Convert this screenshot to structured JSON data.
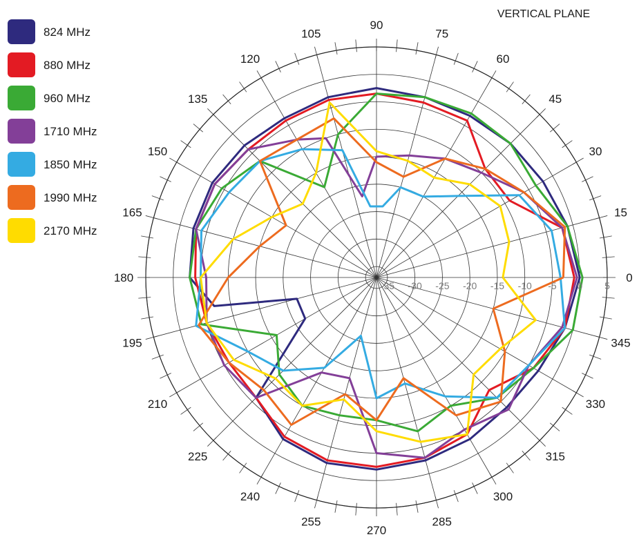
{
  "chart_data": {
    "type": "polar-line",
    "title": "VERTICAL PLANE",
    "angle_ticks": [
      "0",
      "15",
      "30",
      "45",
      "60",
      "75",
      "90",
      "105",
      "120",
      "135",
      "150",
      "165",
      "180",
      "195",
      "210",
      "225",
      "240",
      "255",
      "270",
      "285",
      "300",
      "315",
      "330",
      "345"
    ],
    "angle_tick_values": [
      0,
      15,
      30,
      45,
      60,
      75,
      90,
      105,
      120,
      135,
      150,
      165,
      180,
      195,
      210,
      225,
      240,
      255,
      270,
      285,
      300,
      315,
      330,
      345
    ],
    "radial_ticks": [
      "-35",
      "-30",
      "-25",
      "-20",
      "-15",
      "-10",
      "-5",
      "0",
      "5"
    ],
    "radial_tick_values": [
      -35,
      -30,
      -25,
      -20,
      -15,
      -10,
      -5,
      0,
      5
    ],
    "rlim": [
      -37,
      5
    ],
    "grid": true,
    "legend_position": "top-left",
    "series": [
      {
        "name": "824 MHz",
        "color": "#2e2a7e",
        "points": [
          [
            0,
            0
          ],
          [
            15,
            -1
          ],
          [
            30,
            -2
          ],
          [
            45,
            -2.5
          ],
          [
            60,
            -3
          ],
          [
            75,
            -3
          ],
          [
            90,
            -2.5
          ],
          [
            105,
            -3
          ],
          [
            120,
            -3.5
          ],
          [
            135,
            -3
          ],
          [
            150,
            -2.5
          ],
          [
            165,
            -2.5
          ],
          [
            180,
            -3
          ],
          [
            190,
            -7
          ],
          [
            195,
            -22
          ],
          [
            210,
            -22
          ],
          [
            225,
            -6
          ],
          [
            240,
            -3
          ],
          [
            255,
            -2
          ],
          [
            270,
            -2
          ],
          [
            285,
            -2.5
          ],
          [
            300,
            -3
          ],
          [
            315,
            -3.5
          ],
          [
            330,
            -3
          ],
          [
            345,
            -1.5
          ]
        ]
      },
      {
        "name": "880 MHz",
        "color": "#e31b23",
        "points": [
          [
            0,
            -1
          ],
          [
            15,
            -2
          ],
          [
            30,
            -9
          ],
          [
            45,
            -9
          ],
          [
            60,
            -4
          ],
          [
            75,
            -4
          ],
          [
            90,
            -3.5
          ],
          [
            105,
            -3.5
          ],
          [
            120,
            -4
          ],
          [
            135,
            -4
          ],
          [
            150,
            -3
          ],
          [
            165,
            -3
          ],
          [
            180,
            -4
          ],
          [
            195,
            -5
          ],
          [
            210,
            -6
          ],
          [
            225,
            -6
          ],
          [
            240,
            -3.5
          ],
          [
            255,
            -2.5
          ],
          [
            270,
            -2.5
          ],
          [
            285,
            -3
          ],
          [
            300,
            -4
          ],
          [
            315,
            -8
          ],
          [
            330,
            -4
          ],
          [
            345,
            -1.5
          ]
        ]
      },
      {
        "name": "960 MHz",
        "color": "#3aaa35",
        "points": [
          [
            0,
            0.5
          ],
          [
            15,
            -1
          ],
          [
            30,
            -3.5
          ],
          [
            45,
            -2.5
          ],
          [
            60,
            -2.5
          ],
          [
            75,
            -3
          ],
          [
            90,
            -3.5
          ],
          [
            105,
            -10
          ],
          [
            120,
            -18
          ],
          [
            135,
            -7
          ],
          [
            150,
            -4.5
          ],
          [
            165,
            -3
          ],
          [
            180,
            -3
          ],
          [
            195,
            -4
          ],
          [
            210,
            -16
          ],
          [
            225,
            -12
          ],
          [
            240,
            -10
          ],
          [
            255,
            -11
          ],
          [
            270,
            -11
          ],
          [
            285,
            -8
          ],
          [
            300,
            -10
          ],
          [
            315,
            -6
          ],
          [
            330,
            -4
          ],
          [
            345,
            0
          ]
        ]
      },
      {
        "name": "1710 MHz",
        "color": "#833f98",
        "points": [
          [
            0,
            -0.5
          ],
          [
            15,
            -2
          ],
          [
            30,
            -6
          ],
          [
            45,
            -10
          ],
          [
            60,
            -12
          ],
          [
            75,
            -14
          ],
          [
            90,
            -15
          ],
          [
            100,
            -22
          ],
          [
            110,
            -10
          ],
          [
            120,
            -8
          ],
          [
            135,
            -4
          ],
          [
            150,
            -3
          ],
          [
            165,
            -3
          ],
          [
            180,
            -6
          ],
          [
            195,
            -5
          ],
          [
            210,
            -5
          ],
          [
            225,
            -6
          ],
          [
            240,
            -17
          ],
          [
            255,
            -18
          ],
          [
            270,
            -5
          ],
          [
            285,
            -3
          ],
          [
            300,
            -5
          ],
          [
            315,
            -3
          ],
          [
            330,
            -5
          ],
          [
            345,
            -2
          ]
        ]
      },
      {
        "name": "1850 MHz",
        "color": "#34abe2",
        "points": [
          [
            0,
            -3.5
          ],
          [
            15,
            -4
          ],
          [
            30,
            -7
          ],
          [
            45,
            -16
          ],
          [
            60,
            -20
          ],
          [
            75,
            -20
          ],
          [
            85,
            -24
          ],
          [
            95,
            -24
          ],
          [
            105,
            -13
          ],
          [
            120,
            -10
          ],
          [
            135,
            -7
          ],
          [
            150,
            -6
          ],
          [
            165,
            -4
          ],
          [
            180,
            -5
          ],
          [
            195,
            -3
          ],
          [
            210,
            -10
          ],
          [
            225,
            -13
          ],
          [
            240,
            -18
          ],
          [
            255,
            -26
          ],
          [
            270,
            -15
          ],
          [
            285,
            -17
          ],
          [
            300,
            -12
          ],
          [
            315,
            -6
          ],
          [
            330,
            -5
          ],
          [
            345,
            -1.5
          ]
        ]
      },
      {
        "name": "1990 MHz",
        "color": "#ed6b1f",
        "points": [
          [
            0,
            -3
          ],
          [
            15,
            -1.5
          ],
          [
            30,
            -6
          ],
          [
            45,
            -9
          ],
          [
            60,
            -12
          ],
          [
            75,
            -18
          ],
          [
            90,
            -16
          ],
          [
            105,
            -7
          ],
          [
            120,
            -8
          ],
          [
            135,
            -7
          ],
          [
            150,
            -18
          ],
          [
            165,
            -15
          ],
          [
            180,
            -10
          ],
          [
            195,
            -3.5
          ],
          [
            210,
            -6
          ],
          [
            225,
            -8
          ],
          [
            240,
            -6
          ],
          [
            255,
            -15
          ],
          [
            270,
            -11
          ],
          [
            285,
            -18
          ],
          [
            300,
            -8
          ],
          [
            315,
            -5
          ],
          [
            330,
            -10
          ],
          [
            345,
            -15
          ]
        ]
      },
      {
        "name": "2170 MHz",
        "color": "#ffdc00",
        "points": [
          [
            0,
            -14
          ],
          [
            15,
            -12
          ],
          [
            30,
            -11
          ],
          [
            45,
            -13
          ],
          [
            60,
            -16
          ],
          [
            75,
            -15
          ],
          [
            90,
            -14
          ],
          [
            105,
            -4
          ],
          [
            120,
            -15
          ],
          [
            135,
            -18
          ],
          [
            150,
            -15
          ],
          [
            165,
            -10
          ],
          [
            180,
            -5
          ],
          [
            195,
            -5
          ],
          [
            210,
            -7
          ],
          [
            225,
            -11
          ],
          [
            240,
            -10
          ],
          [
            255,
            -14
          ],
          [
            270,
            -9
          ],
          [
            285,
            -6
          ],
          [
            300,
            -4
          ],
          [
            315,
            -12
          ],
          [
            330,
            -11
          ],
          [
            345,
            -7
          ]
        ]
      }
    ]
  }
}
